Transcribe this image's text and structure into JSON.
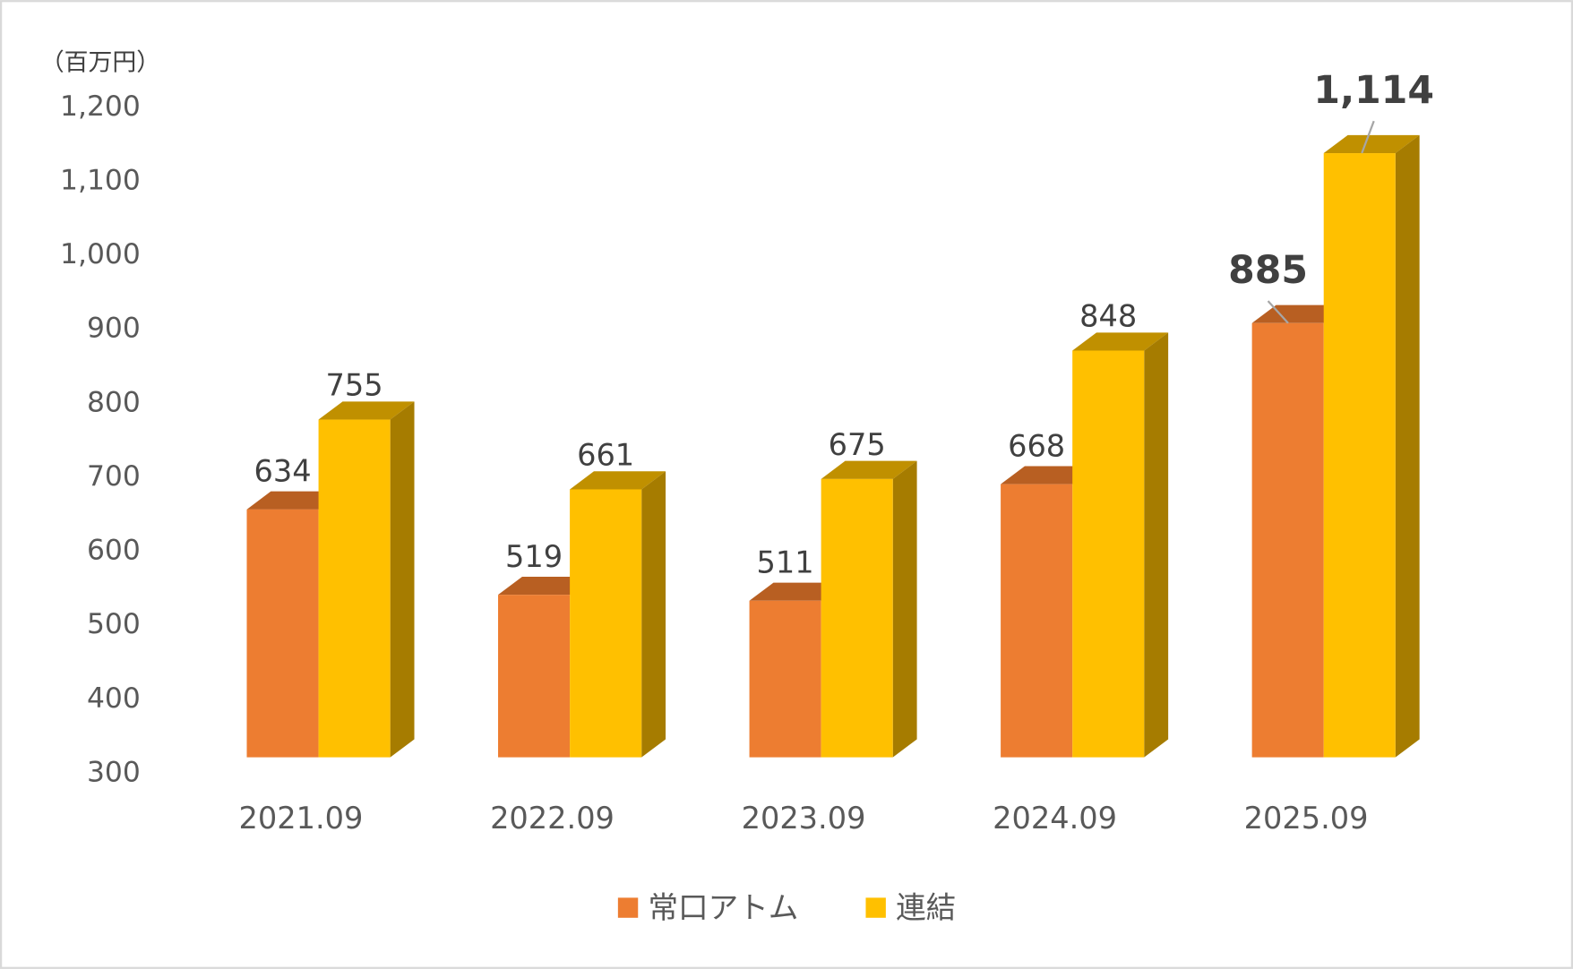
{
  "chart_data": {
    "type": "bar",
    "unit_label": "（百万円）",
    "categories": [
      "2021.09",
      "2022.09",
      "2023.09",
      "2024.09",
      "2025.09"
    ],
    "series": [
      {
        "name": "常口アトム",
        "values": [
          634,
          519,
          511,
          668,
          885
        ],
        "color": "#ED7D31"
      },
      {
        "name": "連結",
        "values": [
          755,
          661,
          675,
          848,
          1114
        ],
        "color": "#FFC000"
      }
    ],
    "data_labels": [
      [
        "634",
        "519",
        "511",
        "668",
        "885"
      ],
      [
        "755",
        "661",
        "675",
        "848",
        "1,114"
      ]
    ],
    "ylim": [
      300,
      1200
    ],
    "yticks": [
      "300",
      "400",
      "500",
      "600",
      "700",
      "800",
      "900",
      "1,000",
      "1,100",
      "1,200"
    ],
    "bar_style": "3d",
    "grid": false,
    "legend": "bottom"
  }
}
